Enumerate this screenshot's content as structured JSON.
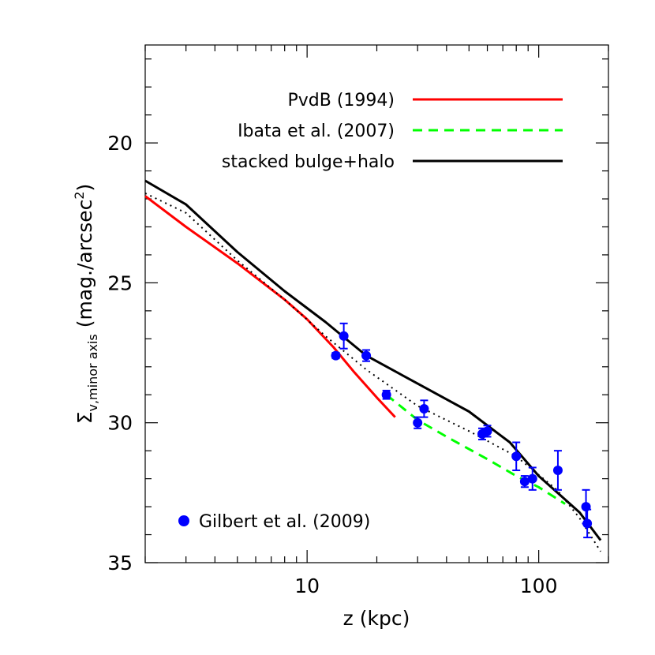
{
  "chart_data": {
    "type": "line",
    "xlabel": "z (kpc)",
    "ylabel": {
      "symbol": "Σ",
      "subscript": "v,minor axis",
      "units": "(mag./arcsec",
      "units_power": "2",
      "units_close": ")"
    },
    "xscale": "log",
    "xlim": [
      2.0,
      200.0
    ],
    "ylim": [
      35,
      16.5
    ],
    "y_inverted": true,
    "x_ticks": [
      10,
      100
    ],
    "x_tick_labels": [
      "10",
      "100"
    ],
    "y_ticks": [
      20,
      25,
      30,
      35
    ],
    "y_tick_labels": [
      "20",
      "25",
      "30",
      "35"
    ],
    "grid": false,
    "legend_placement": "top-right",
    "series": [
      {
        "name": "PvdB (1994)",
        "style": "solid",
        "color": "#ff0000",
        "x": [
          2.0,
          3.0,
          5.0,
          8.0,
          10.0,
          13.0,
          16.0,
          20.0,
          24.0
        ],
        "y": [
          21.9,
          23.0,
          24.3,
          25.6,
          26.3,
          27.3,
          28.2,
          29.1,
          29.8
        ]
      },
      {
        "name": "Ibata et al. (2007)",
        "style": "dashed",
        "color": "#00ff00",
        "x": [
          22.0,
          30.0,
          40.0,
          60.0,
          80.0,
          100.0,
          130.0
        ],
        "y": [
          29.0,
          29.9,
          30.5,
          31.3,
          31.9,
          32.3,
          32.9
        ]
      },
      {
        "name": "stacked bulge+halo",
        "style": "solid",
        "color": "#000000",
        "x": [
          2.0,
          3.0,
          5.0,
          8.0,
          12.0,
          18.0,
          30.0,
          50.0,
          75.0,
          100.0,
          150.0,
          185.0
        ],
        "y": [
          21.35,
          22.2,
          23.9,
          25.3,
          26.4,
          27.6,
          28.6,
          29.6,
          30.7,
          31.9,
          33.2,
          34.2
        ]
      },
      {
        "style": "dotted",
        "color": "#000000",
        "x": [
          2.0,
          3.0,
          5.0,
          8.0,
          12.0,
          18.0,
          30.0,
          50.0,
          80.0,
          120.0,
          150.0,
          185.0
        ],
        "y": [
          21.8,
          22.5,
          24.2,
          25.6,
          26.9,
          28.1,
          29.4,
          30.3,
          31.2,
          32.4,
          33.4,
          34.6
        ]
      }
    ],
    "points": {
      "name": "Gilbert et al. (2009)",
      "color": "#0000ff",
      "x": [
        13.3,
        14.4,
        18.0,
        22.0,
        30.0,
        32.0,
        57.0,
        60.0,
        80.0,
        87.0,
        94.0,
        121.0,
        160.0,
        162.0
      ],
      "y": [
        27.6,
        26.9,
        27.6,
        29.0,
        30.0,
        29.5,
        30.4,
        30.3,
        31.2,
        32.1,
        32.0,
        31.7,
        33.0,
        33.6
      ],
      "err": [
        0.1,
        0.45,
        0.2,
        0.15,
        0.2,
        0.3,
        0.2,
        0.2,
        0.5,
        0.2,
        0.4,
        0.7,
        0.6,
        0.5
      ]
    }
  }
}
